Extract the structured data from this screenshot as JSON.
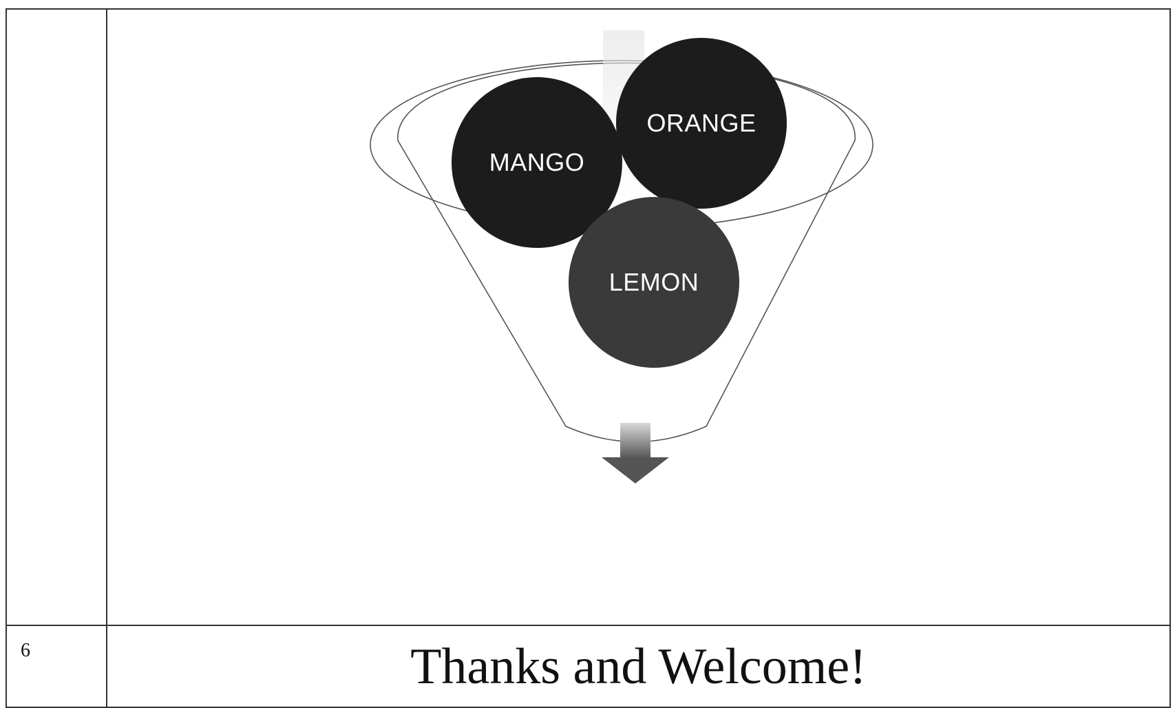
{
  "rows": [
    {
      "number": "",
      "circles": [
        "MANGO",
        "ORANGE",
        "LEMON"
      ]
    },
    {
      "number": "6",
      "text": "Thanks and Welcome!"
    }
  ]
}
